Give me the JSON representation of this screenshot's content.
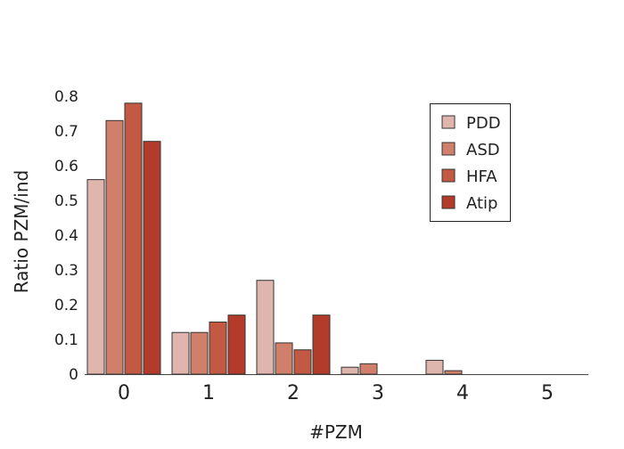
{
  "chart_data": {
    "type": "bar",
    "title": "",
    "xlabel": "#PZM",
    "ylabel": "Ratio PZM/ind",
    "categories": [
      "0",
      "1",
      "2",
      "3",
      "4",
      "5"
    ],
    "yticks": [
      "0",
      "0.1",
      "0.2",
      "0.3",
      "0.4",
      "0.5",
      "0.6",
      "0.7",
      "0.8"
    ],
    "ylim": [
      0,
      0.8
    ],
    "grid": false,
    "legend_position": "top-right",
    "series": [
      {
        "name": "PDD",
        "color": "#dfb5ae",
        "values": [
          0.56,
          0.12,
          0.27,
          0.02,
          0.04,
          0
        ]
      },
      {
        "name": "ASD",
        "color": "#d07f6b",
        "values": [
          0.73,
          0.12,
          0.09,
          0.03,
          0.01,
          0
        ]
      },
      {
        "name": "HFA",
        "color": "#c35843",
        "values": [
          0.78,
          0.15,
          0.07,
          0,
          0,
          0
        ]
      },
      {
        "name": "Atip",
        "color": "#b33b29",
        "values": [
          0.67,
          0.17,
          0.17,
          0,
          0,
          0
        ]
      }
    ]
  }
}
